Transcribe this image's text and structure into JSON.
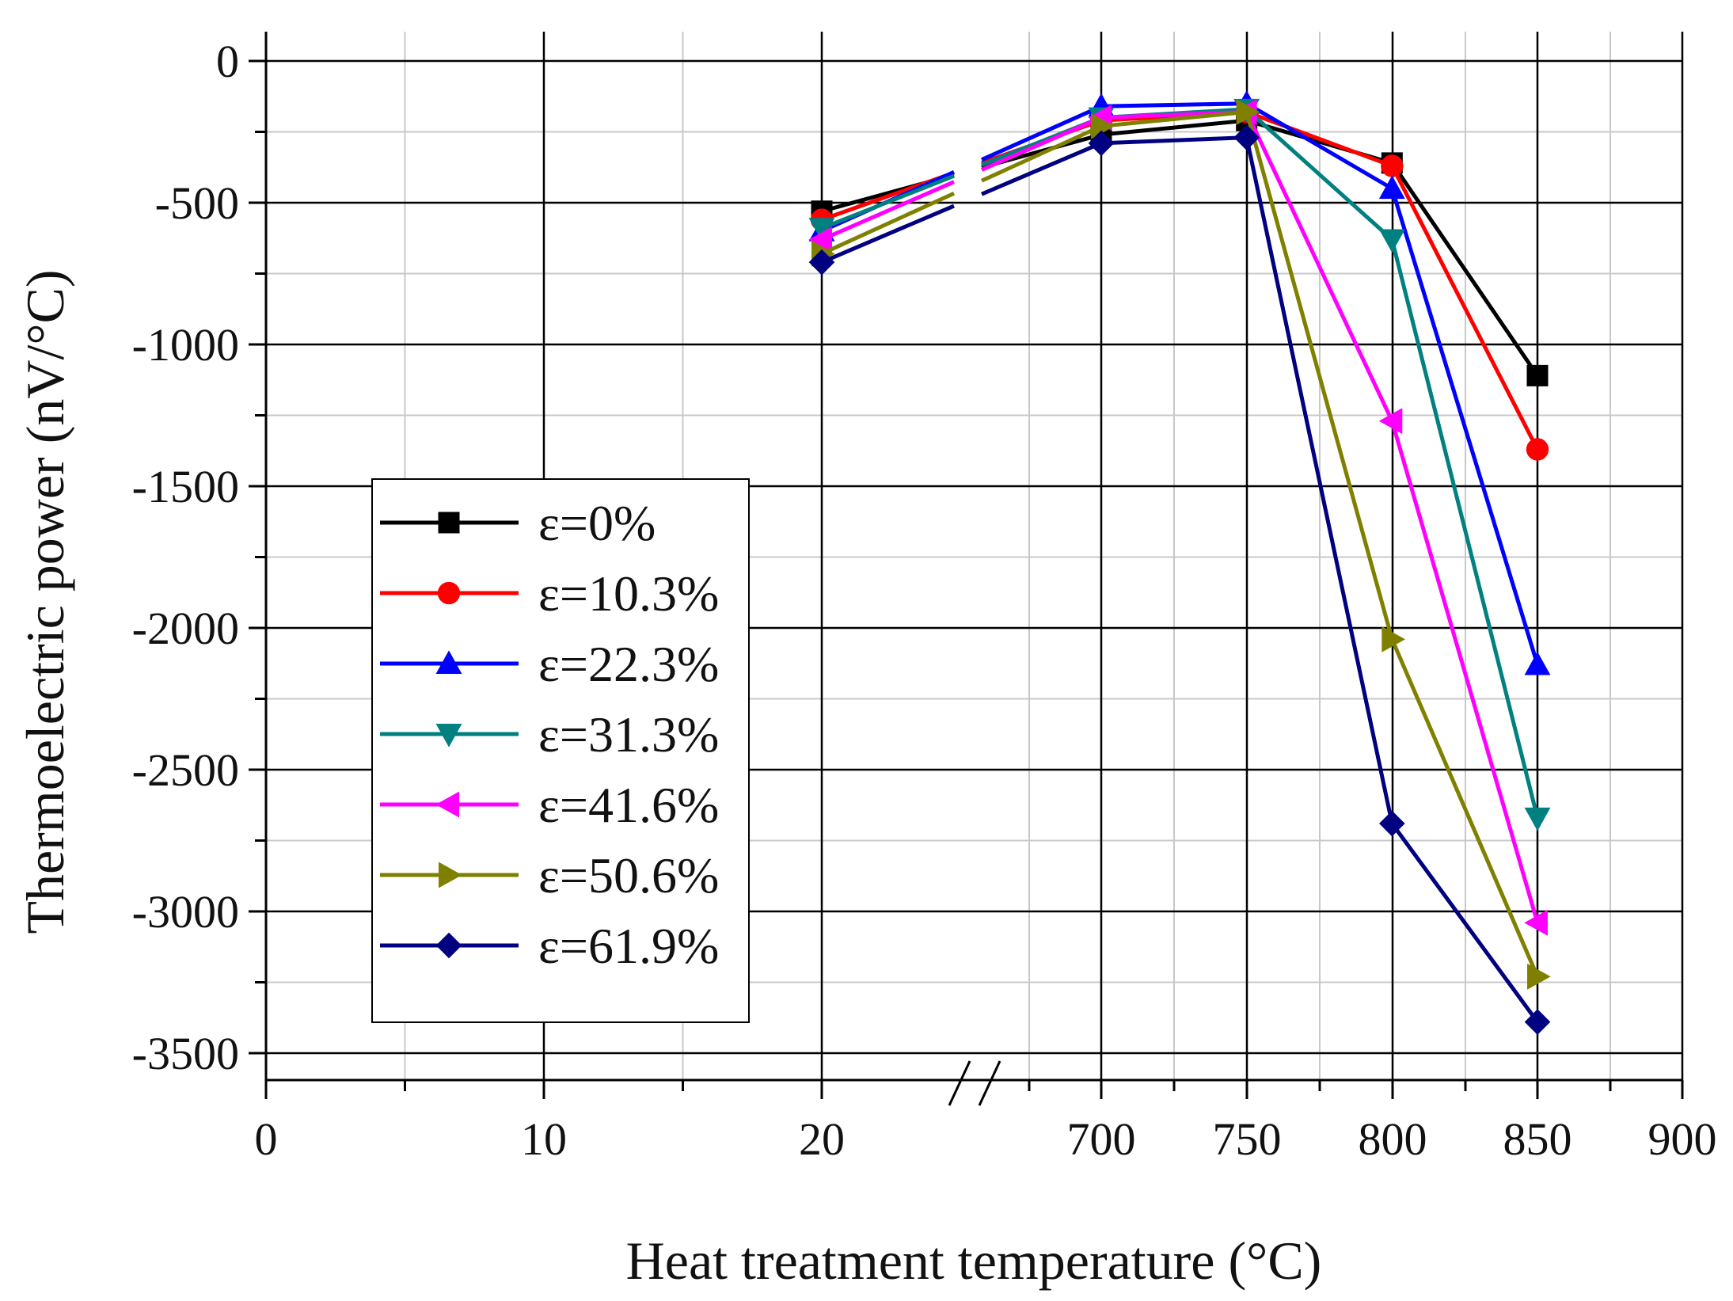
{
  "chart_data": {
    "type": "line",
    "title": "",
    "xlabel": "Heat treatment temperature (°C)",
    "ylabel": "Thermoelectric power (nV/°C)",
    "x_tick_labels": [
      "0",
      "10",
      "20",
      "700",
      "750",
      "800",
      "850",
      "900"
    ],
    "y_tick_labels": [
      "0",
      "-500",
      "-1000",
      "-1500",
      "-2000",
      "-2500",
      "-3000",
      "-3500"
    ],
    "y_ticks": [
      0,
      -500,
      -1000,
      -1500,
      -2000,
      -2500,
      -3000,
      -3500
    ],
    "ylim": [
      -3600,
      160
    ],
    "axis_break": "between 20 and 700",
    "grid": true,
    "legend_position": "left-center",
    "x": [
      20,
      700,
      750,
      800,
      850
    ],
    "series": [
      {
        "name": "ε=0%",
        "color": "#000000",
        "marker": "square",
        "values": [
          -530,
          -260,
          -210,
          -360,
          -1110
        ]
      },
      {
        "name": "ε=10.3%",
        "color": "#ff0000",
        "marker": "circle",
        "values": [
          -560,
          -210,
          -180,
          -370,
          -1370
        ]
      },
      {
        "name": "ε=22.3%",
        "color": "#0000ff",
        "marker": "triangle-up",
        "values": [
          -600,
          -160,
          -150,
          -450,
          -2130
        ]
      },
      {
        "name": "ε=31.3%",
        "color": "#008080",
        "marker": "triangle-down",
        "values": [
          -590,
          -200,
          -170,
          -630,
          -2670
        ]
      },
      {
        "name": "ε=41.6%",
        "color": "#ff00ff",
        "marker": "triangle-left",
        "values": [
          -630,
          -200,
          -180,
          -1270,
          -3040
        ]
      },
      {
        "name": "ε=50.6%",
        "color": "#808000",
        "marker": "triangle-right",
        "values": [
          -680,
          -230,
          -180,
          -2040,
          -3230
        ]
      },
      {
        "name": "ε=61.9%",
        "color": "#000080",
        "marker": "diamond",
        "values": [
          -710,
          -290,
          -270,
          -2690,
          -3390
        ]
      }
    ]
  }
}
